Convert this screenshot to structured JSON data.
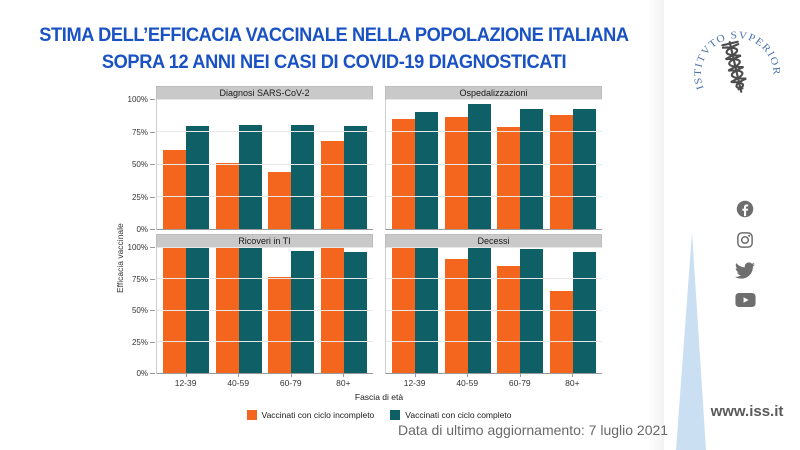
{
  "header": {
    "title_line1": "STIMA DELL’EFFICACIA VACCINALE NELLA POPOLAZIONE ITALIANA",
    "title_line2": "SOPRA 12 ANNI NEI CASI DI COVID-19 DIAGNOSTICATI"
  },
  "footer": {
    "updated": "Data di ultimo aggiornamento: 7 luglio 2021"
  },
  "sidebar": {
    "logo_text": "ISTITVTO SVPERIORE DI SANITÀ",
    "website": "www.iss.it",
    "social_icons": [
      "facebook-icon",
      "instagram-icon",
      "twitter-icon",
      "youtube-icon"
    ]
  },
  "colors": {
    "title_blue": "#1A52C4",
    "incomplete_orange": "#F4661D",
    "complete_teal": "#0F5F66",
    "strip_gray": "#C9C9C9",
    "ribbon_blue": "#CBDFF2",
    "logo_blue": "#4F74AC"
  },
  "chart_data": {
    "type": "bar",
    "categories": [
      "12-39",
      "40-59",
      "60-79",
      "80+"
    ],
    "y_ticks": [
      "0%",
      "25%",
      "50%",
      "75%",
      "100%"
    ],
    "ylim": [
      0,
      100
    ],
    "ylabel": "Efficacia vaccinale",
    "xlabel": "Fascia di età",
    "grid": true,
    "legend_position": "bottom",
    "legend": [
      {
        "name": "Vaccinati con ciclo incompleto",
        "color": "#F4661D"
      },
      {
        "name": "Vaccinati con ciclo completo",
        "color": "#0F5F66"
      }
    ],
    "panels": [
      {
        "title": "Diagnosi SARS-CoV-2",
        "series": [
          {
            "name": "Vaccinati con ciclo incompleto",
            "values": [
              61,
              51,
              44,
              68
            ]
          },
          {
            "name": "Vaccinati con ciclo completo",
            "values": [
              80,
              81,
              81,
              80
            ]
          }
        ]
      },
      {
        "title": "Ospedalizzazioni",
        "series": [
          {
            "name": "Vaccinati con ciclo incompleto",
            "values": [
              85,
              87,
              79,
              88
            ]
          },
          {
            "name": "Vaccinati con ciclo completo",
            "values": [
              91,
              97,
              93,
              93
            ]
          }
        ]
      },
      {
        "title": "Ricoveri in TI",
        "series": [
          {
            "name": "Vaccinati con ciclo incompleto",
            "values": [
              100,
              100,
              77,
              100
            ]
          },
          {
            "name": "Vaccinati con ciclo completo",
            "values": [
              100,
              100,
              98,
              97
            ]
          }
        ]
      },
      {
        "title": "Decessi",
        "series": [
          {
            "name": "Vaccinati con ciclo incompleto",
            "values": [
              100,
              91,
              86,
              66
            ]
          },
          {
            "name": "Vaccinati con ciclo completo",
            "values": [
              100,
              100,
              99,
              97
            ]
          }
        ]
      }
    ]
  }
}
